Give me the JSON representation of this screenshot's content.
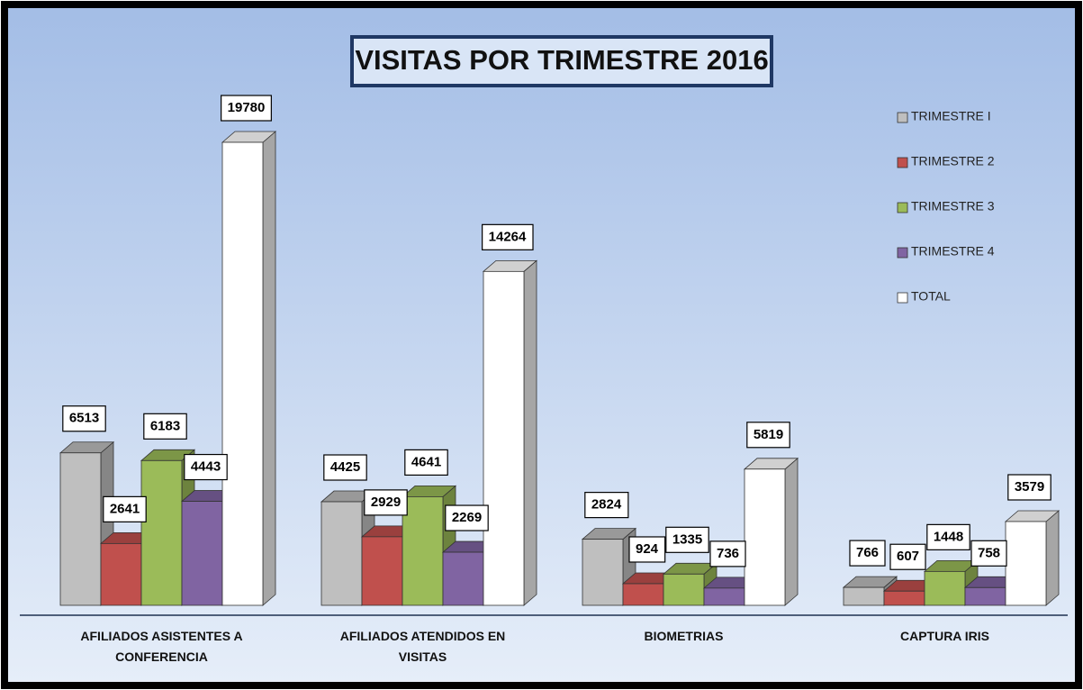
{
  "chart_data": {
    "type": "bar3d",
    "title": "VISITAS POR TRIMESTRE 2016",
    "categories": [
      "AFILIADOS ASISTENTES A CONFERENCIA",
      "AFILIADOS ATENDIDOS EN VISITAS",
      "BIOMETRIAS",
      "CAPTURA IRIS"
    ],
    "series": [
      {
        "name": "TRIMESTRE I",
        "color": "#bfbfbf",
        "values": [
          6513,
          4425,
          2824,
          766
        ]
      },
      {
        "name": "TRIMESTRE 2",
        "color": "#c0504d",
        "values": [
          2641,
          2929,
          924,
          607
        ]
      },
      {
        "name": "TRIMESTRE 3",
        "color": "#9bbb59",
        "values": [
          6183,
          4641,
          1335,
          1448
        ]
      },
      {
        "name": "TRIMESTRE 4",
        "color": "#8064a2",
        "values": [
          4443,
          2269,
          736,
          758
        ]
      },
      {
        "name": "TOTAL",
        "color": "#ffffff",
        "values": [
          19780,
          14264,
          5819,
          3579
        ]
      }
    ],
    "legend": "right"
  }
}
